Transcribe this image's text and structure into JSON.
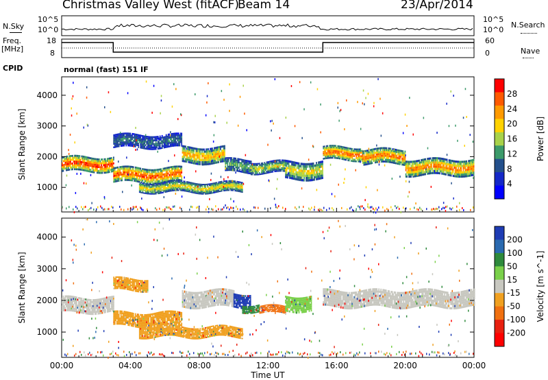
{
  "header": {
    "station": "Christmas Valley West (fitACF)",
    "beam": "Beam 14",
    "date": "23/Apr/2014"
  },
  "top_labels": {
    "nsky": "N.Sky",
    "freq": "Freq.",
    "freq_unit": "[MHz]",
    "cpid": "CPID",
    "nsearch": "N.Search",
    "nave": "Nave",
    "cpid_text": "normal (fast) 151 IF"
  },
  "noise_axis": {
    "left_ticks": [
      "10^5",
      "10^0"
    ],
    "right_ticks": [
      "10^5",
      "10^0"
    ]
  },
  "freq_axis": {
    "left_ticks": [
      "18",
      "8"
    ],
    "right_ticks": [
      "60",
      "0"
    ]
  },
  "chart_data": [
    {
      "type": "heatmap",
      "name": "power",
      "ylabel": "Slant Range [km]",
      "ylim": [
        200,
        4600
      ],
      "yticks": [
        1000,
        2000,
        3000,
        4000
      ],
      "colorbar": {
        "label": "Power [dB]",
        "ticks": [
          "28",
          "24",
          "20",
          "16",
          "12",
          "8",
          "4"
        ],
        "colors": [
          "#ff0000",
          "#ff5a00",
          "#ff9a00",
          "#ffd200",
          "#a8d24a",
          "#3c9a6a",
          "#24508c",
          "#1428c8",
          "#0000ff"
        ]
      },
      "bands": [
        {
          "t0": 0.0,
          "t1": 3.0,
          "center": 1750,
          "width": 500,
          "level": 0.95
        },
        {
          "t0": 3.0,
          "t1": 7.0,
          "center": 1400,
          "width": 500,
          "level": 0.9
        },
        {
          "t0": 7.0,
          "t1": 9.5,
          "center": 2050,
          "width": 550,
          "level": 0.7
        },
        {
          "t0": 9.5,
          "t1": 11.0,
          "center": 1700,
          "width": 450,
          "level": 0.4
        },
        {
          "t0": 11.0,
          "t1": 13.0,
          "center": 1650,
          "width": 400,
          "level": 0.5
        },
        {
          "t0": 13.0,
          "t1": 15.2,
          "center": 1550,
          "width": 600,
          "level": 0.6
        },
        {
          "t0": 15.2,
          "t1": 17.5,
          "center": 2100,
          "width": 450,
          "level": 0.85
        },
        {
          "t0": 17.5,
          "t1": 20.0,
          "center": 2000,
          "width": 500,
          "level": 0.8
        },
        {
          "t0": 20.0,
          "t1": 24.0,
          "center": 1650,
          "width": 550,
          "level": 0.8
        }
      ],
      "features": [
        {
          "t0": 4.5,
          "t1": 10.5,
          "center": 1000,
          "width": 350,
          "level": 0.6
        },
        {
          "t0": 3.0,
          "t1": 7.0,
          "center": 2500,
          "width": 450,
          "level": 0.25
        }
      ]
    },
    {
      "type": "heatmap",
      "name": "velocity",
      "ylabel": "Slant Range [km]",
      "xlabel": "Time UT",
      "ylim": [
        200,
        4600
      ],
      "yticks": [
        1000,
        2000,
        3000,
        4000
      ],
      "xticks": [
        "00:00",
        "04:00",
        "08:00",
        "12:00",
        "16:00",
        "20:00",
        "00:00"
      ],
      "colorbar": {
        "label": "Velocity [m s^-1]",
        "ticks": [
          "200",
          "100",
          "50",
          "15",
          "-15",
          "-50",
          "-100",
          "-200"
        ],
        "colors": [
          "#1e3cb4",
          "#2a6ab0",
          "#2e8a3c",
          "#7ad04a",
          "#c8c8c0",
          "#f0a020",
          "#f07010",
          "#e82010",
          "#ff0000"
        ]
      },
      "bands": [
        {
          "t0": 0.0,
          "t1": 3.0,
          "center": 1850,
          "width": 500,
          "color": "#c8c8c0"
        },
        {
          "t0": 3.0,
          "t1": 7.0,
          "center": 1400,
          "width": 450,
          "color": "#f0a020"
        },
        {
          "t0": 3.0,
          "t1": 5.0,
          "center": 2500,
          "width": 400,
          "color": "#f0a020"
        },
        {
          "t0": 7.0,
          "t1": 10.0,
          "center": 2050,
          "width": 550,
          "color": "#c8c8c0"
        },
        {
          "t0": 10.0,
          "t1": 11.0,
          "center": 2000,
          "width": 450,
          "color": "#1e3cb4"
        },
        {
          "t0": 10.5,
          "t1": 11.5,
          "center": 1750,
          "width": 250,
          "color": "#2e8a3c"
        },
        {
          "t0": 11.5,
          "t1": 13.0,
          "center": 1700,
          "width": 250,
          "color": "#f07010"
        },
        {
          "t0": 13.0,
          "t1": 14.5,
          "center": 1900,
          "width": 500,
          "color": "#7ad04a"
        },
        {
          "t0": 15.2,
          "t1": 24.0,
          "center": 2050,
          "width": 550,
          "color": "#c8c8c0"
        }
      ],
      "features": [
        {
          "t0": 4.5,
          "t1": 10.5,
          "center": 1000,
          "width": 350,
          "color": "#f0a020"
        }
      ]
    }
  ]
}
